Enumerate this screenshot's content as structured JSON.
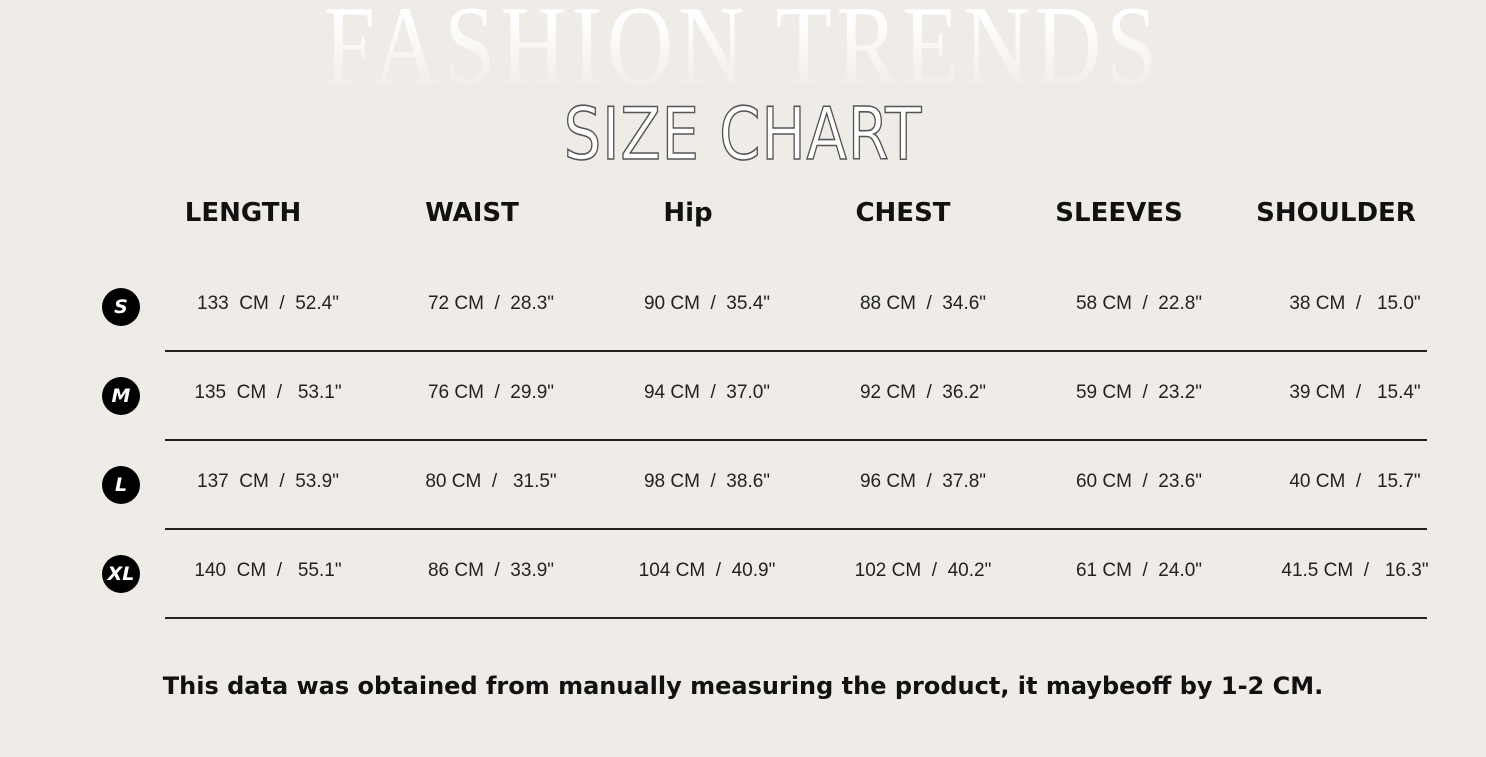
{
  "watermark": "FASHION TRENDS",
  "title": "SIZE CHART",
  "columns": [
    "LENGTH",
    "WAIST",
    "Hip",
    "CHEST",
    "SLEEVES",
    "SHOULDER"
  ],
  "rows": [
    {
      "size": "S",
      "values": [
        "133  CM  /  52.4\"",
        "72 CM  /  28.3\"",
        "90 CM  /  35.4\"",
        "88 CM  /  34.6\"",
        "58 CM  /  22.8\"",
        "38 CM  /   15.0\""
      ]
    },
    {
      "size": "M",
      "values": [
        "135  CM  /   53.1\"",
        "76 CM  /  29.9\"",
        "94 CM  /  37.0\"",
        "92 CM  /  36.2\"",
        "59 CM  /  23.2\"",
        "39 CM  /   15.4\""
      ]
    },
    {
      "size": "L",
      "values": [
        "137  CM  /  53.9\"",
        "80 CM  /   31.5\"",
        "98 CM  /  38.6\"",
        "96 CM  /  37.8\"",
        "60 CM  /  23.6\"",
        "40 CM  /   15.7\""
      ]
    },
    {
      "size": "XL",
      "values": [
        "140  CM  /   55.1\"",
        "86 CM  /  33.9\"",
        "104 CM  /  40.9\"",
        "102 CM  /  40.2\"",
        "61 CM  /  24.0\"",
        "41.5 CM  /   16.3\""
      ]
    }
  ],
  "note": "This data was obtained from manually measuring the product, it maybeoff by 1-2 CM."
}
